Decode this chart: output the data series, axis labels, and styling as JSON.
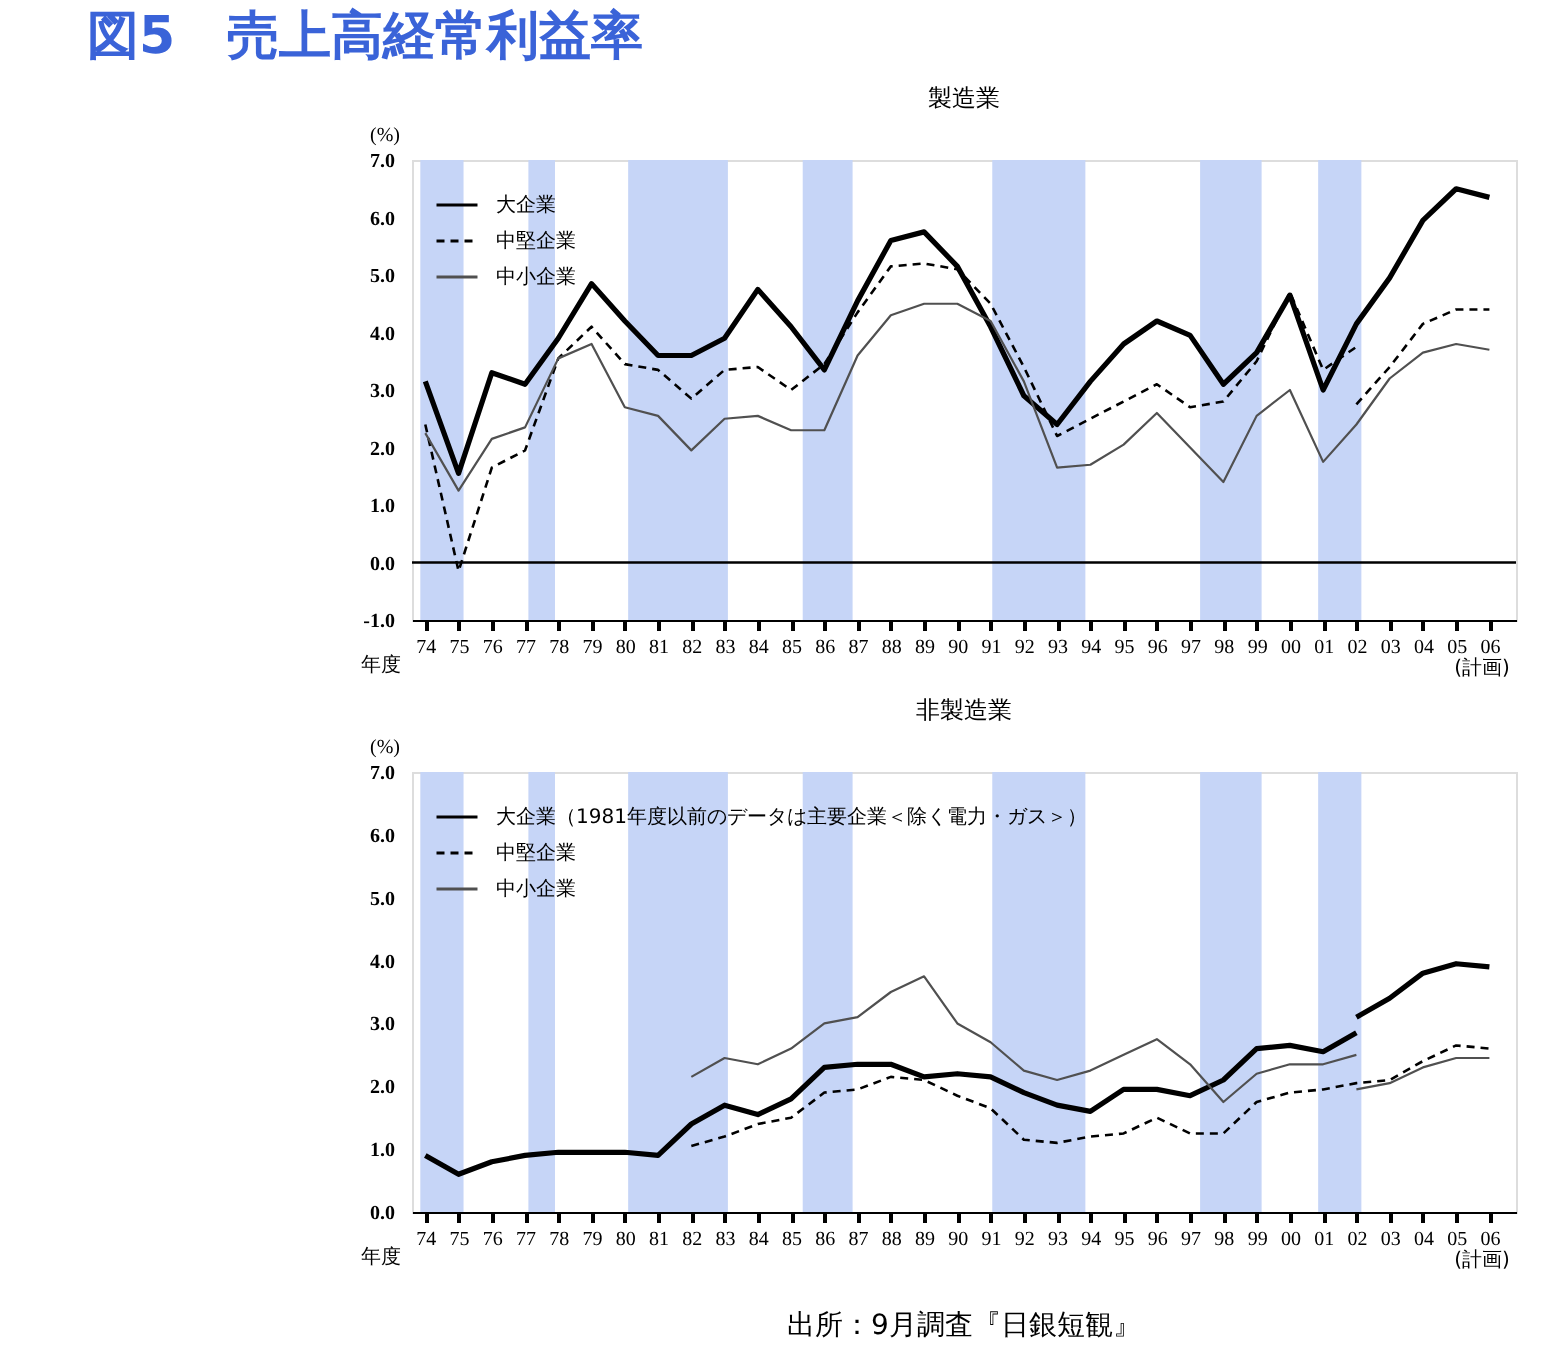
{
  "chart_data": [
    {
      "type": "line",
      "title": "図5　売上高経常利益率",
      "subtitle": "製造業",
      "xlabel": "年度",
      "ylabel": "(%)",
      "x": [
        1974,
        1975,
        1976,
        1977,
        1978,
        1979,
        1980,
        1981,
        1982,
        1983,
        1984,
        1985,
        1986,
        1987,
        1988,
        1989,
        1990,
        1991,
        1992,
        1993,
        1994,
        1995,
        1996,
        1997,
        1998,
        1999,
        2000,
        2001,
        2002,
        2003,
        2004,
        2005,
        2006
      ],
      "xlim": [
        1973.6,
        2006.8
      ],
      "xticks": [
        {
          "value": 1974,
          "label": "74"
        },
        {
          "value": 1975,
          "label": "75"
        },
        {
          "value": 1976,
          "label": "76"
        },
        {
          "value": 1977,
          "label": "77"
        },
        {
          "value": 1978,
          "label": "78"
        },
        {
          "value": 1979,
          "label": "79"
        },
        {
          "value": 1980,
          "label": "80"
        },
        {
          "value": 1981,
          "label": "81"
        },
        {
          "value": 1982,
          "label": "82"
        },
        {
          "value": 1983,
          "label": "83"
        },
        {
          "value": 1984,
          "label": "84"
        },
        {
          "value": 1985,
          "label": "85"
        },
        {
          "value": 1986,
          "label": "86"
        },
        {
          "value": 1987,
          "label": "87"
        },
        {
          "value": 1988,
          "label": "88"
        },
        {
          "value": 1989,
          "label": "89"
        },
        {
          "value": 1990,
          "label": "90"
        },
        {
          "value": 1991,
          "label": "91"
        },
        {
          "value": 1992,
          "label": "92"
        },
        {
          "value": 1993,
          "label": "93"
        },
        {
          "value": 1994,
          "label": "94"
        },
        {
          "value": 1995,
          "label": "95"
        },
        {
          "value": 1996,
          "label": "96"
        },
        {
          "value": 1997,
          "label": "97"
        },
        {
          "value": 1998,
          "label": "98"
        },
        {
          "value": 1999,
          "label": "99"
        },
        {
          "value": 2000,
          "label": "00"
        },
        {
          "value": 2001,
          "label": "01"
        },
        {
          "value": 2002,
          "label": "02"
        },
        {
          "value": 2003,
          "label": "03"
        },
        {
          "value": 2004,
          "label": "04"
        },
        {
          "value": 2005,
          "label": "05"
        },
        {
          "value": 2006,
          "label": "06"
        }
      ],
      "ylim": [
        -1,
        7
      ],
      "yticks": [
        {
          "value": -1,
          "label": "-1.0"
        },
        {
          "value": 0,
          "label": "0.0"
        },
        {
          "value": 1,
          "label": "1.0"
        },
        {
          "value": 2,
          "label": "2.0"
        },
        {
          "value": 3,
          "label": "3.0"
        },
        {
          "value": 4,
          "label": "4.0"
        },
        {
          "value": 5,
          "label": "5.0"
        },
        {
          "value": 6,
          "label": "6.0"
        },
        {
          "value": 7,
          "label": "7.0"
        }
      ],
      "legend": "top left",
      "series": [
        {
          "name": "大企業",
          "color": "#000000",
          "line_style": "solid",
          "values": [
            3.15,
            1.55,
            3.3,
            3.1,
            3.9,
            4.85,
            4.2,
            3.6,
            3.6,
            3.9,
            4.75,
            4.1,
            3.35,
            4.55,
            5.6,
            5.75,
            5.15,
            4.1,
            2.9,
            2.4,
            3.15,
            3.8,
            4.2,
            3.95,
            3.1,
            3.65,
            4.65,
            3.0,
            4.15,
            4.95,
            5.95,
            6.5,
            6.35
          ]
        },
        {
          "name": "中堅企業",
          "color": "#000000",
          "line_style": "dashed",
          "x": [
            1974,
            1975,
            1976,
            1977,
            1978,
            1979,
            1980,
            1981,
            1982,
            1983,
            1984,
            1985,
            1986,
            1987,
            1988,
            1989,
            1990,
            1991,
            1992,
            1993,
            1994,
            1995,
            1996,
            1997,
            1998,
            1999,
            2000,
            2001,
            2002,
            null,
            2002,
            2003,
            2004,
            2005,
            2006
          ],
          "values": [
            2.4,
            -0.15,
            1.65,
            1.95,
            3.55,
            4.1,
            3.45,
            3.35,
            2.85,
            3.35,
            3.4,
            3.0,
            3.45,
            4.35,
            5.15,
            5.2,
            5.1,
            4.5,
            3.4,
            2.2,
            2.5,
            2.8,
            3.1,
            2.7,
            2.8,
            3.5,
            4.7,
            3.35,
            3.75,
            null,
            2.75,
            3.4,
            4.15,
            4.4,
            4.4
          ]
        },
        {
          "name": "中小企業",
          "color": "#505050",
          "line_style": "solid",
          "values": [
            2.25,
            1.25,
            2.15,
            2.35,
            3.55,
            3.8,
            2.7,
            2.55,
            1.95,
            2.5,
            2.55,
            2.3,
            2.3,
            3.6,
            4.3,
            4.5,
            4.5,
            4.2,
            3.15,
            1.65,
            1.7,
            2.05,
            2.6,
            2.0,
            1.4,
            2.55,
            3.0,
            1.75,
            2.4,
            3.2,
            3.65,
            3.8,
            3.7
          ]
        }
      ],
      "ref_lines": [
        {
          "axis": "y",
          "value": 0,
          "color": "#000000"
        }
      ],
      "bands": [
        {
          "axis": "x",
          "from": 1973.85,
          "to": 1975.15,
          "color": "#c6d5f7"
        },
        {
          "axis": "x",
          "from": 1977.1,
          "to": 1977.9,
          "color": "#c6d5f7"
        },
        {
          "axis": "x",
          "from": 1980.1,
          "to": 1983.1,
          "color": "#c6d5f7"
        },
        {
          "axis": "x",
          "from": 1985.35,
          "to": 1986.85,
          "color": "#c6d5f7"
        },
        {
          "axis": "x",
          "from": 1991.05,
          "to": 1993.85,
          "color": "#c6d5f7"
        },
        {
          "axis": "x",
          "from": 1997.3,
          "to": 1999.15,
          "color": "#c6d5f7"
        },
        {
          "axis": "x",
          "from": 2000.85,
          "to": 2002.15,
          "color": "#c6d5f7"
        }
      ],
      "annotations": [
        "(計画)"
      ]
    },
    {
      "type": "line",
      "title": "非製造業",
      "xlabel": "年度",
      "ylabel": "(%)",
      "xlim": [
        1973.6,
        2006.8
      ],
      "xticks": [
        {
          "value": 1974,
          "label": "74"
        },
        {
          "value": 1975,
          "label": "75"
        },
        {
          "value": 1976,
          "label": "76"
        },
        {
          "value": 1977,
          "label": "77"
        },
        {
          "value": 1978,
          "label": "78"
        },
        {
          "value": 1979,
          "label": "79"
        },
        {
          "value": 1980,
          "label": "80"
        },
        {
          "value": 1981,
          "label": "81"
        },
        {
          "value": 1982,
          "label": "82"
        },
        {
          "value": 1983,
          "label": "83"
        },
        {
          "value": 1984,
          "label": "84"
        },
        {
          "value": 1985,
          "label": "85"
        },
        {
          "value": 1986,
          "label": "86"
        },
        {
          "value": 1987,
          "label": "87"
        },
        {
          "value": 1988,
          "label": "88"
        },
        {
          "value": 1989,
          "label": "89"
        },
        {
          "value": 1990,
          "label": "90"
        },
        {
          "value": 1991,
          "label": "91"
        },
        {
          "value": 1992,
          "label": "92"
        },
        {
          "value": 1993,
          "label": "93"
        },
        {
          "value": 1994,
          "label": "94"
        },
        {
          "value": 1995,
          "label": "95"
        },
        {
          "value": 1996,
          "label": "96"
        },
        {
          "value": 1997,
          "label": "97"
        },
        {
          "value": 1998,
          "label": "98"
        },
        {
          "value": 1999,
          "label": "99"
        },
        {
          "value": 2000,
          "label": "00"
        },
        {
          "value": 2001,
          "label": "01"
        },
        {
          "value": 2002,
          "label": "02"
        },
        {
          "value": 2003,
          "label": "03"
        },
        {
          "value": 2004,
          "label": "04"
        },
        {
          "value": 2005,
          "label": "05"
        },
        {
          "value": 2006,
          "label": "06"
        }
      ],
      "ylim": [
        0,
        7
      ],
      "yticks": [
        {
          "value": 0,
          "label": "0.0"
        },
        {
          "value": 1,
          "label": "1.0"
        },
        {
          "value": 2,
          "label": "2.0"
        },
        {
          "value": 3,
          "label": "3.0"
        },
        {
          "value": 4,
          "label": "4.0"
        },
        {
          "value": 5,
          "label": "5.0"
        },
        {
          "value": 6,
          "label": "6.0"
        },
        {
          "value": 7,
          "label": "7.0"
        }
      ],
      "legend": "top left",
      "series": [
        {
          "name": "大企業（1981年度以前のデータは主要企業＜除く電力・ガス＞）",
          "color": "#000000",
          "line_style": "solid",
          "x": [
            1974,
            1975,
            1976,
            1977,
            1978,
            1979,
            1980,
            1981,
            1982,
            1983,
            1984,
            1985,
            1986,
            1987,
            1988,
            1989,
            1990,
            1991,
            1992,
            1993,
            1994,
            1995,
            1996,
            1997,
            1998,
            1999,
            2000,
            2001,
            2002,
            null,
            2002,
            2003,
            2004,
            2005,
            2006
          ],
          "values": [
            0.9,
            0.6,
            0.8,
            0.9,
            0.95,
            0.95,
            0.95,
            0.9,
            1.4,
            1.7,
            1.55,
            1.8,
            2.3,
            2.35,
            2.35,
            2.15,
            2.2,
            2.15,
            1.9,
            1.7,
            1.6,
            1.95,
            1.95,
            1.85,
            2.1,
            2.6,
            2.65,
            2.55,
            2.85,
            null,
            3.1,
            3.4,
            3.8,
            3.95,
            3.9
          ]
        },
        {
          "name": "中堅企業",
          "color": "#000000",
          "line_style": "dashed",
          "x": [
            1982,
            1983,
            1984,
            1985,
            1986,
            1987,
            1988,
            1989,
            1990,
            1991,
            1992,
            1993,
            1994,
            1995,
            1996,
            1997,
            1998,
            1999,
            2000,
            2001,
            2002,
            2003,
            2004,
            2005,
            2006
          ],
          "values": [
            1.05,
            1.2,
            1.4,
            1.5,
            1.9,
            1.95,
            2.15,
            2.1,
            1.85,
            1.65,
            1.15,
            1.1,
            1.2,
            1.25,
            1.5,
            1.25,
            1.25,
            1.75,
            1.9,
            1.95,
            2.05,
            2.1,
            2.4,
            2.65,
            2.6
          ]
        },
        {
          "name": "中小企業",
          "color": "#505050",
          "line_style": "solid",
          "x": [
            1982,
            1983,
            1984,
            1985,
            1986,
            1987,
            1988,
            1989,
            1990,
            1991,
            1992,
            1993,
            1994,
            1995,
            1996,
            1997,
            1998,
            1999,
            2000,
            2001,
            2002,
            null,
            2002,
            2003,
            2004,
            2005,
            2006
          ],
          "values": [
            2.15,
            2.45,
            2.35,
            2.6,
            3.0,
            3.1,
            3.5,
            3.75,
            3.0,
            2.7,
            2.25,
            2.1,
            2.25,
            2.5,
            2.75,
            2.35,
            1.75,
            2.2,
            2.35,
            2.35,
            2.5,
            null,
            1.95,
            2.05,
            2.3,
            2.45,
            2.45
          ]
        }
      ],
      "bands": [
        {
          "axis": "x",
          "from": 1973.85,
          "to": 1975.15,
          "color": "#c6d5f7"
        },
        {
          "axis": "x",
          "from": 1977.1,
          "to": 1977.9,
          "color": "#c6d5f7"
        },
        {
          "axis": "x",
          "from": 1980.1,
          "to": 1983.1,
          "color": "#c6d5f7"
        },
        {
          "axis": "x",
          "from": 1985.35,
          "to": 1986.85,
          "color": "#c6d5f7"
        },
        {
          "axis": "x",
          "from": 1991.05,
          "to": 1993.85,
          "color": "#c6d5f7"
        },
        {
          "axis": "x",
          "from": 1997.3,
          "to": 1999.15,
          "color": "#c6d5f7"
        },
        {
          "axis": "x",
          "from": 2000.85,
          "to": 2002.15,
          "color": "#c6d5f7"
        }
      ],
      "annotations": [
        "(計画)",
        "出所：9月調査『日銀短観』"
      ]
    }
  ]
}
